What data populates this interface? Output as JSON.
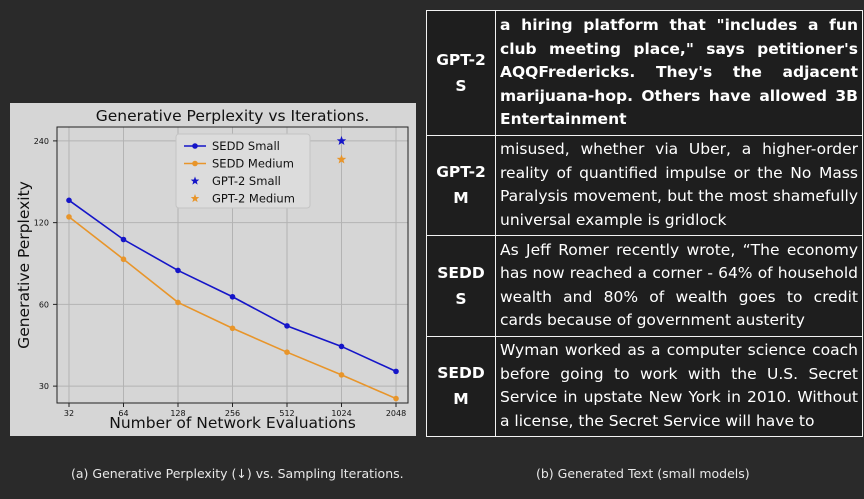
{
  "chart_data": {
    "type": "line",
    "title": "Generative Perplexity vs Iterations.",
    "xlabel": "Number of Network Evaluations",
    "ylabel": "Generative Perplexity",
    "x": [
      32,
      64,
      128,
      256,
      512,
      1024,
      2048
    ],
    "x_scale": "log2",
    "y_scale": "log",
    "ylim": [
      26,
      270
    ],
    "yticks": [
      30,
      60,
      120,
      240
    ],
    "grid": true,
    "legend_position": "top-center",
    "series": [
      {
        "name": "SEDD Small",
        "kind": "line",
        "color": "#1515c8",
        "values": [
          145,
          104,
          80,
          64,
          50,
          42,
          34
        ]
      },
      {
        "name": "SEDD Medium",
        "kind": "line",
        "color": "#e8952a",
        "values": [
          126,
          88,
          61,
          49,
          40,
          33,
          27
        ]
      },
      {
        "name": "GPT-2 Small",
        "kind": "marker",
        "color": "#1515c8",
        "x": 1024,
        "value": 240
      },
      {
        "name": "GPT-2 Medium",
        "kind": "marker",
        "color": "#e8952a",
        "x": 1024,
        "value": 205
      }
    ]
  },
  "samples_table": {
    "rows": [
      {
        "model": "GPT-2 S",
        "text": "a hiring platform that \"includes a fun club meeting place,\" says petitioner's AQQFredericks. They's the adjacent marijuana-hop. Others have allowed 3B Entertainment",
        "bold": true
      },
      {
        "model": "GPT-2 M",
        "text": "misused, whether via Uber, a higher-order reality of quantified impulse or the No Mass Paralysis movement, but the most shamefully universal example is gridlock",
        "bold": false
      },
      {
        "model": "SEDD S",
        "text": "As Jeff Romer recently wrote, “The economy has now reached a corner - 64% of household wealth and 80% of wealth goes to credit cards because of government austerity",
        "bold": false
      },
      {
        "model": "SEDD M",
        "text": "Wyman worked as a computer science coach before going to work with the U.S. Secret Service in upstate New York in 2010. Without a license, the Secret Service will have to",
        "bold": false
      }
    ]
  },
  "captions": {
    "a": "(a) Generative Perplexity (↓) vs. Sampling Iterations.",
    "b": "(b) Generated Text (small models)"
  }
}
